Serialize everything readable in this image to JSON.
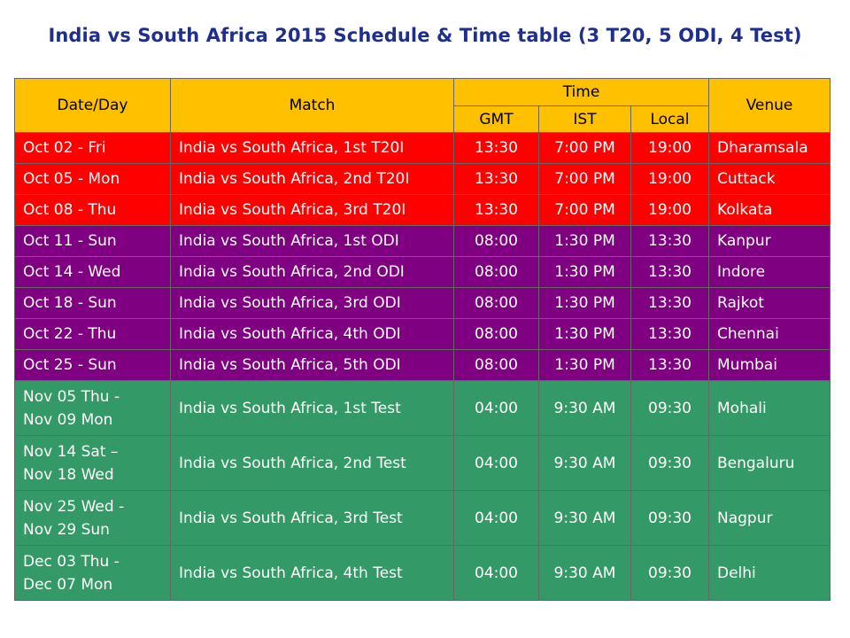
{
  "title": "India vs South Africa 2015 Schedule & Time table (3 T20, 5 ODI, 4 Test)",
  "colors": {
    "header": "#ffc000",
    "t20": "#fe0000",
    "odi": "#7f0080",
    "test": "#339966",
    "title": "#1f2f8f"
  },
  "headers": {
    "date": "Date/Day",
    "match": "Match",
    "time": "Time",
    "gmt": "GMT",
    "ist": "IST",
    "local": "Local",
    "venue": "Venue"
  },
  "rows": [
    {
      "type": "t20",
      "date": [
        "Oct 02 - Fri"
      ],
      "match": "India vs South Africa, 1st T20I",
      "gmt": "13:30",
      "ist": "7:00 PM",
      "local": "19:00",
      "venue": "Dharamsala"
    },
    {
      "type": "t20",
      "date": [
        "Oct 05 - Mon"
      ],
      "match": "India vs South Africa, 2nd T20I",
      "gmt": "13:30",
      "ist": "7:00 PM",
      "local": "19:00",
      "venue": "Cuttack"
    },
    {
      "type": "t20",
      "date": [
        "Oct 08 - Thu"
      ],
      "match": "India vs South Africa, 3rd T20I",
      "gmt": "13:30",
      "ist": "7:00 PM",
      "local": "19:00",
      "venue": "Kolkata"
    },
    {
      "type": "odi",
      "date": [
        "Oct 11 - Sun"
      ],
      "match": "India vs South Africa, 1st ODI",
      "gmt": "08:00",
      "ist": "1:30 PM",
      "local": "13:30",
      "venue": "Kanpur"
    },
    {
      "type": "odi",
      "date": [
        "Oct 14 - Wed"
      ],
      "match": "India vs South Africa, 2nd ODI",
      "gmt": "08:00",
      "ist": "1:30 PM",
      "local": "13:30",
      "venue": "Indore"
    },
    {
      "type": "odi",
      "date": [
        "Oct 18 - Sun"
      ],
      "match": "India vs South Africa, 3rd ODI",
      "gmt": "08:00",
      "ist": "1:30 PM",
      "local": "13:30",
      "venue": "Rajkot"
    },
    {
      "type": "odi",
      "date": [
        "Oct 22 - Thu"
      ],
      "match": "India vs South Africa, 4th ODI",
      "gmt": "08:00",
      "ist": "1:30 PM",
      "local": "13:30",
      "venue": "Chennai"
    },
    {
      "type": "odi",
      "date": [
        "Oct 25 - Sun"
      ],
      "match": "India vs South Africa, 5th ODI",
      "gmt": "08:00",
      "ist": "1:30 PM",
      "local": "13:30",
      "venue": "Mumbai"
    },
    {
      "type": "test",
      "date": [
        "Nov 05 Thu -",
        "Nov 09 Mon"
      ],
      "match": "India vs South Africa, 1st Test",
      "gmt": "04:00",
      "ist": "9:30 AM",
      "local": "09:30",
      "venue": "Mohali"
    },
    {
      "type": "test",
      "date": [
        "Nov 14 Sat –",
        "Nov 18 Wed"
      ],
      "match": "India vs South Africa, 2nd Test",
      "gmt": "04:00",
      "ist": "9:30 AM",
      "local": "09:30",
      "venue": "Bengaluru"
    },
    {
      "type": "test",
      "date": [
        "Nov 25 Wed -",
        "Nov 29 Sun"
      ],
      "match": "India vs South Africa, 3rd Test",
      "gmt": "04:00",
      "ist": "9:30 AM",
      "local": "09:30",
      "venue": "Nagpur"
    },
    {
      "type": "test",
      "date": [
        "Dec 03 Thu -",
        "Dec 07 Mon"
      ],
      "match": "India vs South Africa, 4th Test",
      "gmt": "04:00",
      "ist": "9:30 AM",
      "local": "09:30",
      "venue": "Delhi"
    }
  ]
}
